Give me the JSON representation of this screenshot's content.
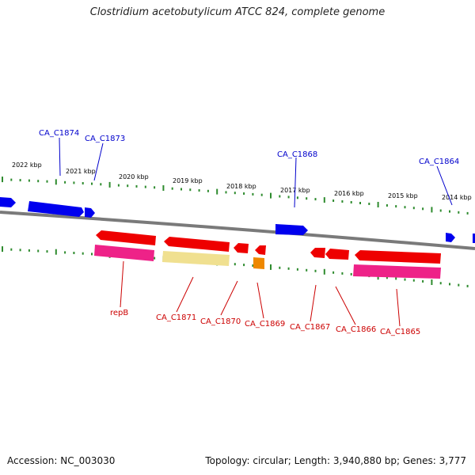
{
  "title": "Clostridium acetobutylicum ATCC 824, complete genome",
  "footer": {
    "accession": "Accession: NC_003030",
    "summary": "Topology: circular; Length: 3,940,880 bp; Genes: 3,777"
  },
  "colors": {
    "backbone": "#7a7a7a",
    "tick": "#2e8b2e",
    "cds_forward": "#0000ee",
    "cds_reverse": "#ee0000",
    "label_forward": "#0000cc",
    "label_reverse": "#cc0000",
    "feature_pink": "#ee2288",
    "feature_pale": "#f0e090",
    "feature_orange": "#ee8800"
  },
  "scale_labels": [
    "2022 kbp",
    "2021 kbp",
    "2020 kbp",
    "2019 kbp",
    "2018 kbp",
    "2017 kbp",
    "2016 kbp",
    "2015 kbp",
    "2014 kbp"
  ],
  "gene_labels_forward": [
    "CA_C1874",
    "CA_C1873",
    "CA_C1868",
    "CA_C1864"
  ],
  "gene_labels_reverse": [
    "repB",
    "CA_C1871",
    "CA_C1870",
    "CA_C1869",
    "CA_C1867",
    "CA_C1866",
    "CA_C1865"
  ]
}
